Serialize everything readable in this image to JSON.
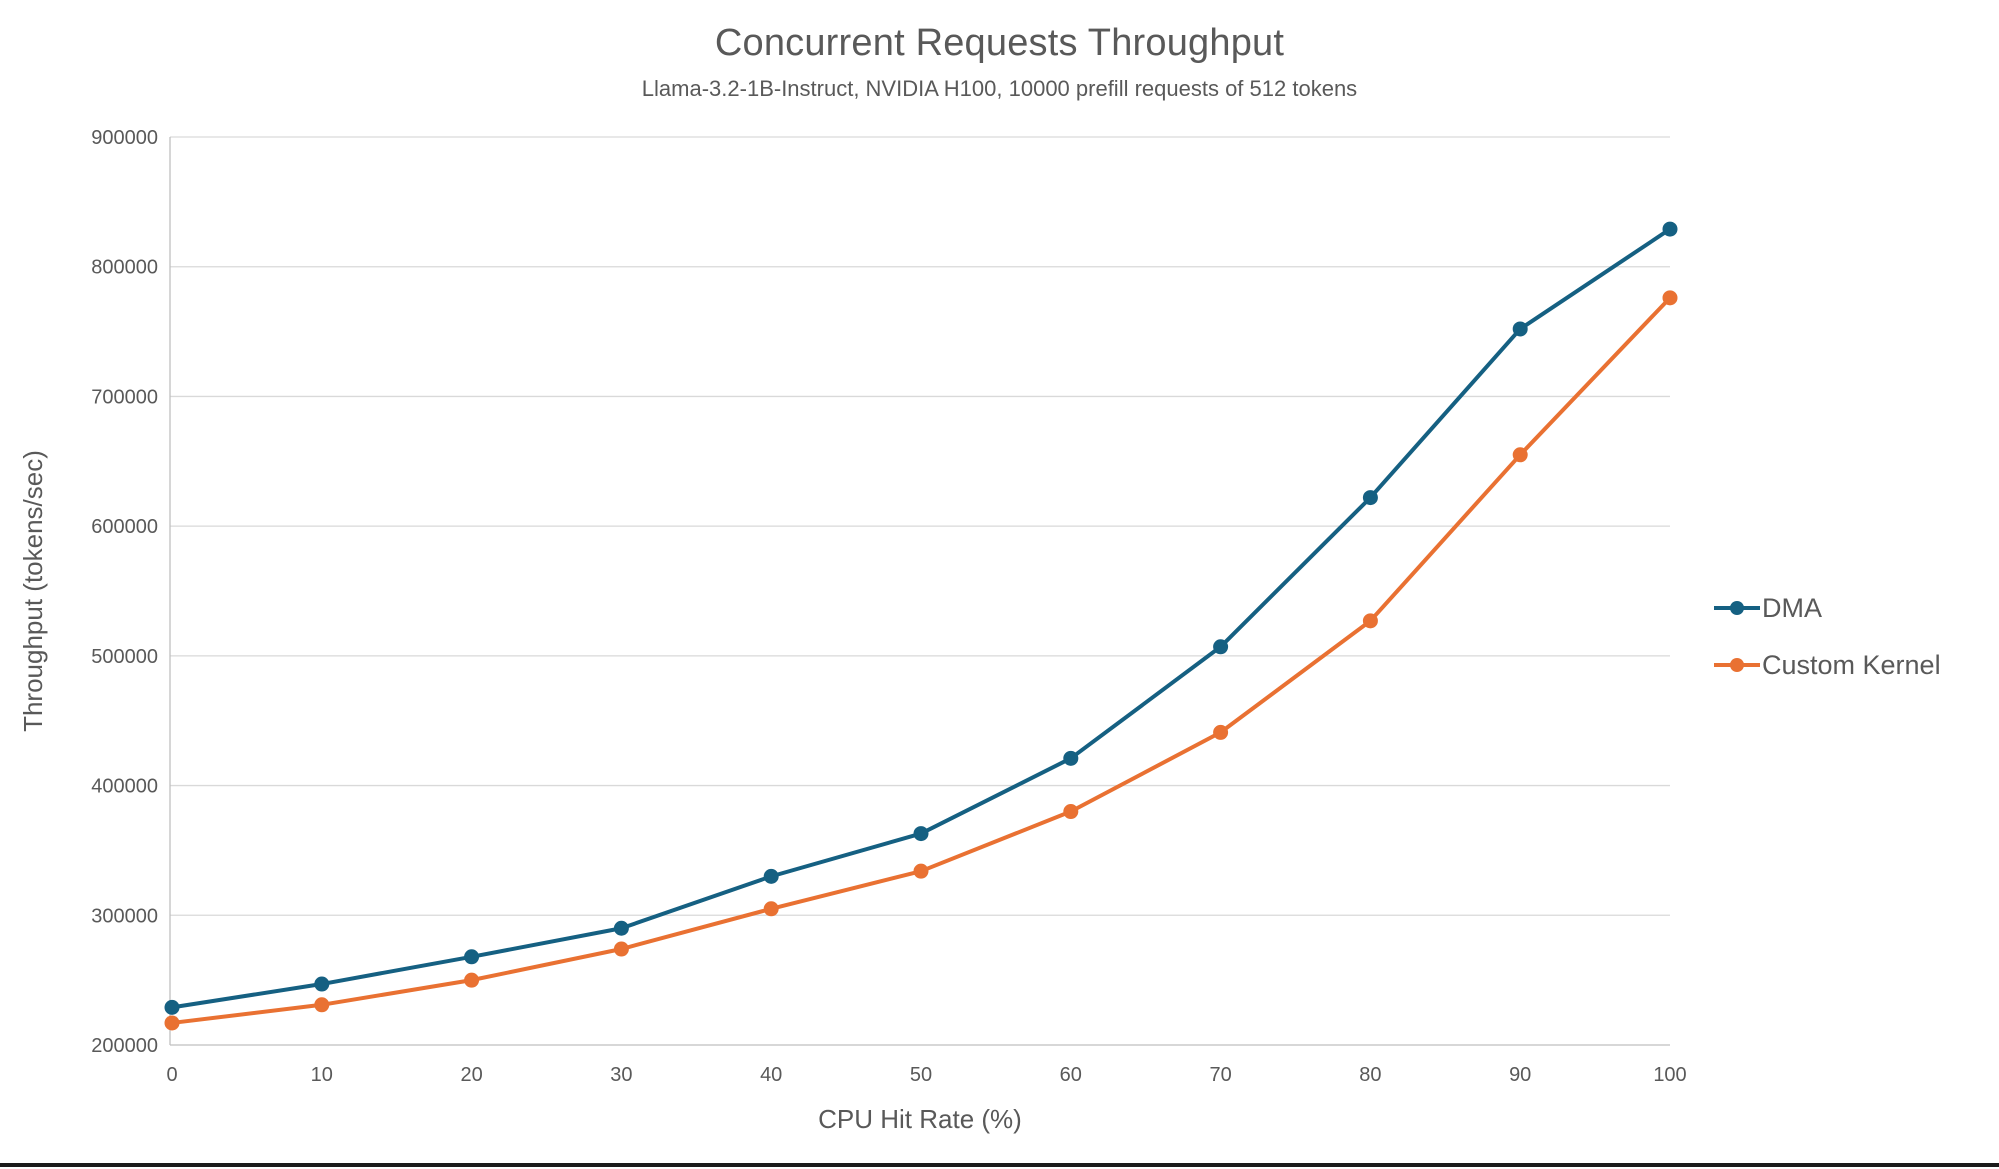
{
  "chart_data": {
    "type": "line",
    "title": "Concurrent Requests Throughput",
    "subtitle": "Llama-3.2-1B-Instruct, NVIDIA H100, 10000 prefill requests of 512 tokens",
    "xlabel": "CPU Hit Rate (%)",
    "ylabel": "Throughput (tokens/sec)",
    "x": [
      0,
      10,
      20,
      30,
      40,
      50,
      60,
      70,
      80,
      90,
      100
    ],
    "series": [
      {
        "name": "DMA",
        "color": "#156082",
        "values": [
          229000,
          247000,
          268000,
          290000,
          330000,
          363000,
          421000,
          507000,
          622000,
          752000,
          829000
        ]
      },
      {
        "name": "Custom Kernel",
        "color": "#E97132",
        "values": [
          217000,
          231000,
          250000,
          274000,
          305000,
          334000,
          380000,
          441000,
          527000,
          655000,
          776000
        ]
      }
    ],
    "ylim": [
      200000,
      900000
    ],
    "ytick_step": 100000,
    "y_tick_labels": [
      "200000",
      "300000",
      "400000",
      "500000",
      "600000",
      "700000",
      "800000",
      "900000"
    ],
    "x_tick_labels": [
      "0",
      "10",
      "20",
      "30",
      "40",
      "50",
      "60",
      "70",
      "80",
      "90",
      "100"
    ],
    "grid": true,
    "legend_position": "right",
    "colors": {
      "text": "#595959",
      "gridline": "#D9D9D9",
      "axis_line": "#BFBFBF",
      "background": "#FFFFFF"
    }
  }
}
